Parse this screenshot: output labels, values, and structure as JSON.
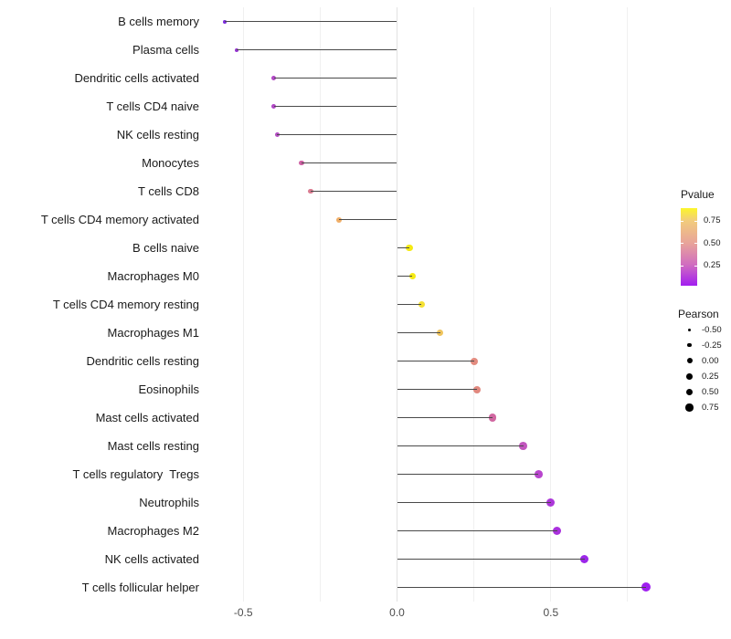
{
  "figure": {
    "background": "#ffffff"
  },
  "chart_data": {
    "type": "scatter",
    "subtype": "horizontal-lollipop",
    "title": "",
    "xlabel": "",
    "ylabel": "",
    "xlim": [
      -0.61,
      0.88
    ],
    "grid": "vertical-major-only",
    "x_gridline_values": [
      -0.5,
      -0.25,
      0.0,
      0.25,
      0.5,
      0.75
    ],
    "x_ticks": [
      {
        "value": -0.5,
        "label": "-0.5"
      },
      {
        "value": 0.0,
        "label": "0.0"
      },
      {
        "value": 0.5,
        "label": "0.5"
      }
    ],
    "stem_color": "#4a4a4a",
    "points": [
      {
        "label": "B cells memory",
        "pearson": -0.56,
        "color": "#7d2cde"
      },
      {
        "label": "Plasma cells",
        "pearson": -0.52,
        "color": "#9633d2"
      },
      {
        "label": "Dendritic cells activated",
        "pearson": -0.4,
        "color": "#b248c6"
      },
      {
        "label": "T cells CD4 naive",
        "pearson": -0.4,
        "color": "#b148c6"
      },
      {
        "label": "NK cells resting",
        "pearson": -0.39,
        "color": "#b44dc3"
      },
      {
        "label": "Monocytes",
        "pearson": -0.31,
        "color": "#ce61a4"
      },
      {
        "label": "T cells CD8",
        "pearson": -0.28,
        "color": "#d97b90"
      },
      {
        "label": "T cells CD4 memory activated",
        "pearson": -0.19,
        "color": "#f0ae67"
      },
      {
        "label": "B cells naive",
        "pearson": 0.04,
        "color": "#f5ea13"
      },
      {
        "label": "Macrophages M0",
        "pearson": 0.05,
        "color": "#f5ea13"
      },
      {
        "label": "T cells CD4 memory resting",
        "pearson": 0.08,
        "color": "#f4e033"
      },
      {
        "label": "Macrophages M1",
        "pearson": 0.14,
        "color": "#efc45c"
      },
      {
        "label": "Dendritic cells resting",
        "pearson": 0.25,
        "color": "#e28b7f"
      },
      {
        "label": "Eosinophils",
        "pearson": 0.26,
        "color": "#e1887e"
      },
      {
        "label": "Mast cells activated",
        "pearson": 0.31,
        "color": "#d167a1"
      },
      {
        "label": "Mast cells resting",
        "pearson": 0.41,
        "color": "#c256be"
      },
      {
        "label": "T cells regulatory  Tregs",
        "pearson": 0.46,
        "color": "#b845cd"
      },
      {
        "label": "Neutrophils",
        "pearson": 0.5,
        "color": "#ac37d9"
      },
      {
        "label": "Macrophages M2",
        "pearson": 0.52,
        "color": "#a930dd"
      },
      {
        "label": "NK cells activated",
        "pearson": 0.61,
        "color": "#9c27e9"
      },
      {
        "label": "T cells follicular helper",
        "pearson": 0.81,
        "color": "#a01ff0"
      }
    ],
    "legend_pvalue": {
      "title": "Pvalue",
      "value_range": [
        0.02,
        0.89
      ],
      "tick_values": [
        0.25,
        0.5,
        0.75
      ],
      "tick_labels": [
        "0.25",
        "0.50",
        "0.75"
      ],
      "gradient_stops_bottom_to_top": [
        {
          "pos": 0.0,
          "color": "#a21ef0"
        },
        {
          "pos": 0.27,
          "color": "#d06cc0"
        },
        {
          "pos": 0.55,
          "color": "#e8a49a"
        },
        {
          "pos": 0.84,
          "color": "#f2cc7c"
        },
        {
          "pos": 1.0,
          "color": "#fcf62a"
        }
      ]
    },
    "legend_pearson": {
      "title": "Pearson",
      "entries": [
        {
          "label": "-0.50",
          "diameter": 3.0
        },
        {
          "label": "-0.25",
          "diameter": 4.7
        },
        {
          "label": "0.00",
          "diameter": 6.0
        },
        {
          "label": "0.25",
          "diameter": 6.7
        },
        {
          "label": "0.50",
          "diameter": 7.7
        },
        {
          "label": "0.75",
          "diameter": 8.3
        }
      ]
    }
  }
}
